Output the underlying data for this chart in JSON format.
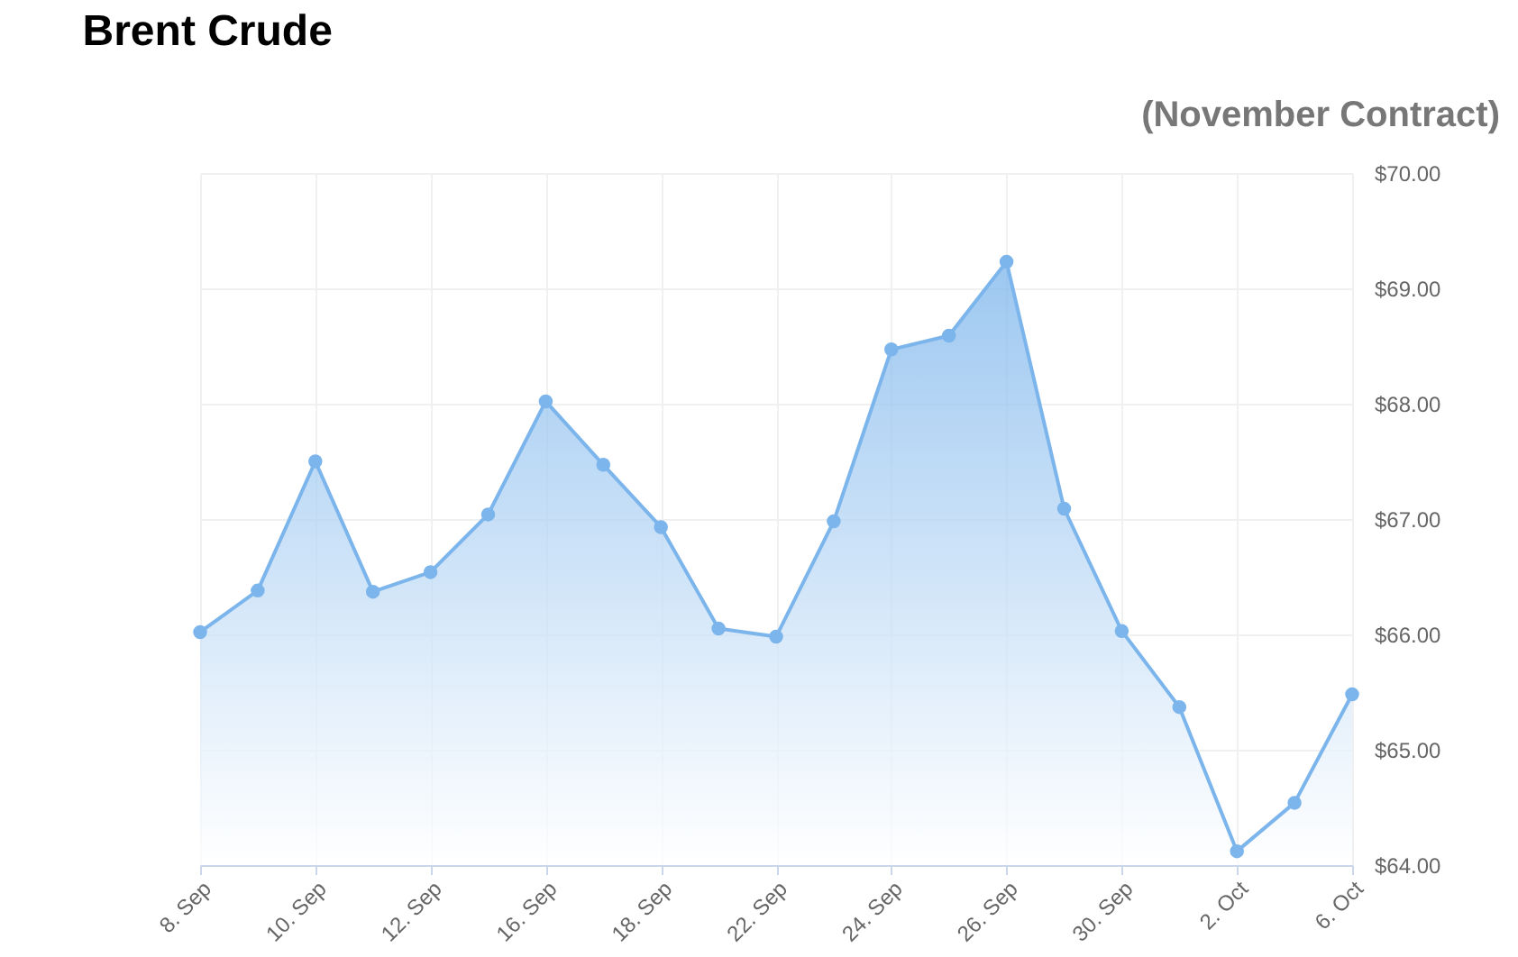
{
  "chart_data": {
    "type": "area",
    "title": "Brent Crude",
    "subtitle": "(November Contract)",
    "categories": [
      "8. Sep",
      null,
      "10. Sep",
      null,
      "12. Sep",
      null,
      "16. Sep",
      null,
      "18. Sep",
      null,
      "22. Sep",
      null,
      "24. Sep",
      null,
      "26. Sep",
      null,
      "30. Sep",
      null,
      "2. Oct",
      null,
      "6. Oct"
    ],
    "series": [
      {
        "color": "#7cb5ec",
        "values": [
          66.02,
          66.38,
          67.5,
          66.37,
          66.54,
          67.04,
          68.02,
          67.47,
          66.93,
          66.05,
          65.98,
          66.98,
          68.47,
          68.59,
          69.23,
          67.09,
          66.03,
          65.37,
          64.12,
          64.54,
          65.48
        ]
      }
    ],
    "ylim": [
      64,
      70
    ],
    "yticks": [
      {
        "value": 64,
        "label": "$64.00"
      },
      {
        "value": 65,
        "label": "$65.00"
      },
      {
        "value": 66,
        "label": "$66.00"
      },
      {
        "value": 67,
        "label": "$67.00"
      },
      {
        "value": 68,
        "label": "$68.00"
      },
      {
        "value": 69,
        "label": "$69.00"
      },
      {
        "value": 70,
        "label": "$70.00"
      }
    ],
    "grid": true,
    "marker": "circle",
    "line_style": "solid"
  }
}
